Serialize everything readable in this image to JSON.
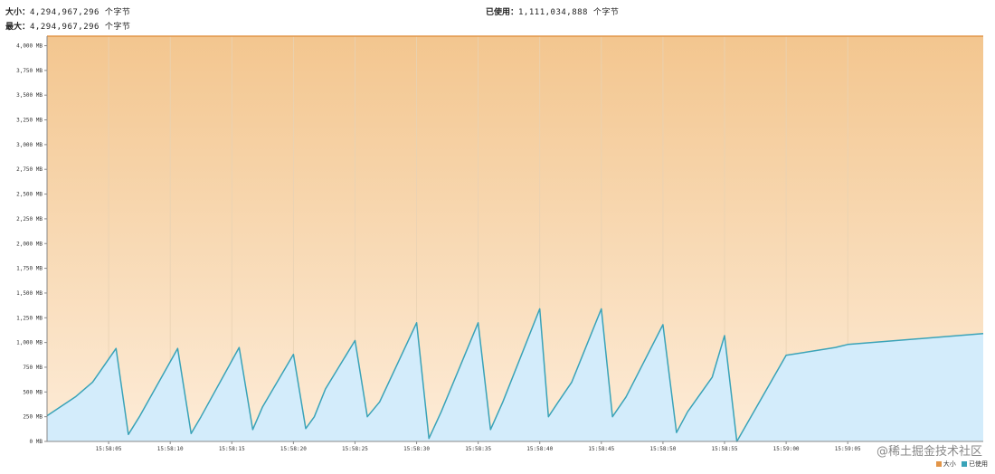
{
  "header": {
    "size_label": "大小：",
    "size_value": "4,294,967,296 个字节",
    "max_label": "最大：",
    "max_value": "4,294,967,296 个字节",
    "used_label": "已使用：",
    "used_value": "1,111,034,888 个字节"
  },
  "colors": {
    "used_fill": "#d3ecfb",
    "used_line": "#3aa3b8",
    "size_fill_top": "#f3c68f",
    "size_fill_bottom": "#fdecd8",
    "size_line": "#e29548",
    "grid": "#e8d2b4"
  },
  "legend": {
    "size_label": "大小",
    "used_label": "已使用"
  },
  "watermark": "@稀土掘金技术社区",
  "chart_data": {
    "type": "area",
    "y_unit": "MB",
    "ylim": [
      0,
      4096
    ],
    "y_ticks": [
      0,
      250,
      500,
      750,
      1000,
      1250,
      1500,
      1750,
      2000,
      2250,
      2500,
      2750,
      3000,
      3250,
      3500,
      3750,
      4000
    ],
    "y_tick_labels": [
      "0 MB",
      "250 MB",
      "500 MB",
      "750 MB",
      "1,000 MB",
      "1,250 MB",
      "1,500 MB",
      "1,750 MB",
      "2,000 MB",
      "2,250 MB",
      "2,500 MB",
      "2,750 MB",
      "3,000 MB",
      "3,250 MB",
      "3,500 MB",
      "3,750 MB",
      "4,000 MB"
    ],
    "x_unit": "seconds",
    "xlim": [
      0,
      76
    ],
    "x_ticks": [
      5,
      10,
      15,
      20,
      25,
      30,
      35,
      40,
      45,
      50,
      55,
      60,
      65
    ],
    "x_tick_labels": [
      "15:58:05",
      "15:58:10",
      "15:58:15",
      "15:58:20",
      "15:58:25",
      "15:58:30",
      "15:58:35",
      "15:58:40",
      "15:58:45",
      "15:58:50",
      "15:58:55",
      "15:59:00",
      "15:59:05"
    ],
    "series": [
      {
        "name": "大小",
        "x": [
          0,
          76
        ],
        "y": [
          4096,
          4096
        ]
      },
      {
        "name": "已使用",
        "x": [
          0,
          2.3,
          3.7,
          5.6,
          6.6,
          7.5,
          10.6,
          11.7,
          12.5,
          15.6,
          16.7,
          17.5,
          20.0,
          21.0,
          21.7,
          22.6,
          25.0,
          26.0,
          27.0,
          30.0,
          31.0,
          32.0,
          35.0,
          36.0,
          37.0,
          40.0,
          40.7,
          41.5,
          42.6,
          45.0,
          45.9,
          47.0,
          50.0,
          51.1,
          52.0,
          54.0,
          55.0,
          56.0,
          60.0,
          64.0,
          65.0,
          76.0
        ],
        "y": [
          260,
          450,
          600,
          940,
          70,
          250,
          940,
          80,
          250,
          950,
          120,
          350,
          880,
          130,
          250,
          530,
          1020,
          250,
          400,
          1200,
          30,
          300,
          1200,
          120,
          400,
          1340,
          250,
          400,
          600,
          1340,
          250,
          450,
          1180,
          90,
          300,
          650,
          1070,
          0,
          870,
          950,
          980,
          1090
        ]
      }
    ]
  }
}
